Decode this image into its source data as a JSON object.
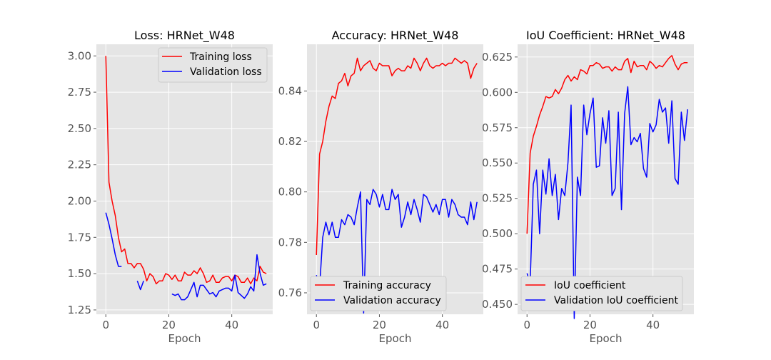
{
  "chart_data": [
    {
      "type": "line",
      "title": "Loss: HRNet_W48",
      "xlabel": "Epoch",
      "ylabel": "",
      "xlim": [
        -3,
        53
      ],
      "ylim": [
        1.22,
        3.08
      ],
      "xticks": [
        0,
        20,
        40
      ],
      "xtick_labels": [
        "0",
        "20",
        "40"
      ],
      "yticks": [
        1.25,
        1.5,
        1.75,
        2.0,
        2.25,
        2.5,
        2.75,
        3.0
      ],
      "ytick_labels": [
        "1.25",
        "1.50",
        "1.75",
        "2.00",
        "2.25",
        "2.50",
        "2.75",
        "3.00"
      ],
      "grid": true,
      "legend_position": "top-right",
      "series": [
        {
          "name": "Training loss",
          "color": "#ff0000",
          "y": [
            3.0,
            2.13,
            2.0,
            1.9,
            1.75,
            1.65,
            1.67,
            1.57,
            1.57,
            1.54,
            1.57,
            1.57,
            1.53,
            1.45,
            1.5,
            1.48,
            1.43,
            1.45,
            1.45,
            1.5,
            1.49,
            1.46,
            1.49,
            1.45,
            1.45,
            1.51,
            1.49,
            1.49,
            1.52,
            1.5,
            1.54,
            1.5,
            1.44,
            1.45,
            1.49,
            1.44,
            1.44,
            1.47,
            1.48,
            1.48,
            1.45,
            1.49,
            1.48,
            1.44,
            1.44,
            1.47,
            1.43,
            1.47,
            1.45,
            1.55,
            1.51,
            1.5
          ]
        },
        {
          "name": "Validation loss",
          "color": "#0000ff",
          "y": [
            1.92,
            1.84,
            1.74,
            1.63,
            1.55,
            1.55,
            null,
            null,
            null,
            null,
            1.45,
            1.39,
            1.45,
            null,
            null,
            null,
            null,
            null,
            null,
            null,
            null,
            1.36,
            1.35,
            1.36,
            1.32,
            1.32,
            1.34,
            1.39,
            1.44,
            1.34,
            1.42,
            1.42,
            1.39,
            1.36,
            1.37,
            1.34,
            1.38,
            1.39,
            1.4,
            1.4,
            1.38,
            1.49,
            1.37,
            1.35,
            1.33,
            1.36,
            1.41,
            1.38,
            1.63,
            1.5,
            1.42,
            1.43
          ]
        }
      ]
    },
    {
      "type": "line",
      "title": "Accuracy: HRNet_W48",
      "xlabel": "Epoch",
      "ylabel": "",
      "xlim": [
        -3,
        53
      ],
      "ylim": [
        0.7515,
        0.8585
      ],
      "xticks": [
        0,
        20,
        40
      ],
      "xtick_labels": [
        "0",
        "20",
        "40"
      ],
      "yticks": [
        0.76,
        0.78,
        0.8,
        0.82,
        0.84
      ],
      "ytick_labels": [
        "0.76",
        "0.78",
        "0.80",
        "0.82",
        "0.84"
      ],
      "grid": true,
      "legend_position": "bottom-left",
      "series": [
        {
          "name": "Training accuracy",
          "color": "#ff0000",
          "y": [
            0.775,
            0.815,
            0.82,
            0.828,
            0.834,
            0.838,
            0.837,
            0.843,
            0.844,
            0.847,
            0.842,
            0.846,
            0.847,
            0.853,
            0.848,
            0.85,
            0.851,
            0.852,
            0.849,
            0.848,
            0.851,
            0.85,
            0.85,
            0.85,
            0.846,
            0.848,
            0.849,
            0.848,
            0.848,
            0.85,
            0.849,
            0.853,
            0.851,
            0.848,
            0.851,
            0.853,
            0.85,
            0.849,
            0.85,
            0.85,
            0.851,
            0.85,
            0.851,
            0.851,
            0.853,
            0.852,
            0.851,
            0.852,
            0.851,
            0.845,
            0.849,
            0.851
          ]
        },
        {
          "name": "Validation accuracy",
          "color": "#0000ff",
          "y": [
            0.767,
            0.762,
            0.782,
            0.788,
            0.783,
            0.788,
            0.782,
            0.782,
            0.789,
            0.787,
            0.791,
            0.79,
            0.787,
            0.794,
            0.8,
            0.752,
            0.797,
            0.795,
            0.801,
            0.799,
            0.794,
            0.799,
            0.793,
            0.793,
            0.801,
            0.797,
            0.799,
            0.786,
            0.79,
            0.796,
            0.791,
            0.797,
            0.793,
            0.788,
            0.799,
            0.798,
            0.795,
            0.792,
            0.795,
            0.791,
            0.797,
            0.797,
            0.79,
            0.797,
            0.795,
            0.791,
            0.79,
            0.79,
            0.787,
            0.796,
            0.789,
            0.796
          ]
        }
      ]
    },
    {
      "type": "line",
      "title": "IoU Coefficient: HRNet_W48",
      "xlabel": "Epoch",
      "ylabel": "",
      "xlim": [
        -3,
        53
      ],
      "ylim": [
        0.443,
        0.634
      ],
      "xticks": [
        0,
        20,
        40
      ],
      "xtick_labels": [
        "0",
        "20",
        "40"
      ],
      "yticks": [
        0.45,
        0.475,
        0.5,
        0.525,
        0.55,
        0.575,
        0.6,
        0.625
      ],
      "ytick_labels": [
        "0.450",
        "0.475",
        "0.500",
        "0.525",
        "0.550",
        "0.575",
        "0.600",
        "0.625"
      ],
      "grid": true,
      "legend_position": "bottom-left",
      "series": [
        {
          "name": "IoU coefficient",
          "color": "#ff0000",
          "y": [
            0.5,
            0.557,
            0.569,
            0.576,
            0.584,
            0.59,
            0.597,
            0.596,
            0.597,
            0.602,
            0.599,
            0.603,
            0.609,
            0.612,
            0.608,
            0.611,
            0.609,
            0.616,
            0.615,
            0.613,
            0.619,
            0.619,
            0.621,
            0.62,
            0.617,
            0.618,
            0.618,
            0.615,
            0.618,
            0.616,
            0.616,
            0.622,
            0.624,
            0.614,
            0.622,
            0.618,
            0.619,
            0.619,
            0.616,
            0.622,
            0.62,
            0.617,
            0.619,
            0.618,
            0.621,
            0.624,
            0.626,
            0.62,
            0.616,
            0.62,
            0.621,
            0.621
          ]
        },
        {
          "name": "Validation IoU coefficient",
          "color": "#0000ff",
          "y": [
            0.472,
            0.465,
            0.535,
            0.545,
            0.5,
            0.545,
            0.528,
            0.553,
            0.527,
            0.542,
            0.51,
            0.532,
            0.527,
            0.55,
            0.591,
            0.44,
            0.54,
            0.527,
            0.591,
            0.57,
            0.585,
            0.596,
            0.547,
            0.548,
            0.582,
            0.564,
            0.587,
            0.527,
            0.532,
            0.586,
            0.517,
            0.585,
            0.604,
            0.563,
            0.568,
            0.565,
            0.571,
            0.546,
            0.54,
            0.578,
            0.572,
            0.577,
            0.595,
            0.586,
            0.589,
            0.564,
            0.594,
            0.539,
            0.535,
            0.586,
            0.566,
            0.588
          ]
        }
      ]
    }
  ]
}
